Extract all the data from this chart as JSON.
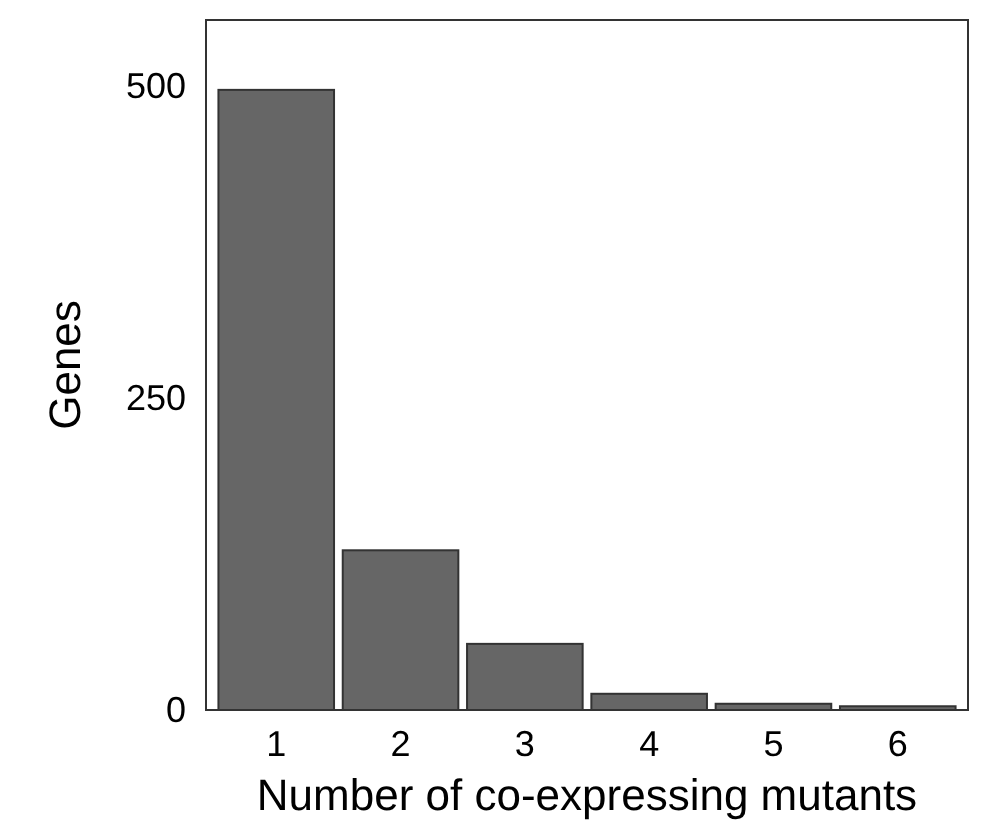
{
  "chart_data": {
    "type": "bar",
    "xlabel": "Number of co-expressing mutants",
    "ylabel": "Genes",
    "categories": [
      "1",
      "2",
      "3",
      "4",
      "5",
      "6"
    ],
    "values": [
      497,
      128,
      53,
      13,
      5,
      3
    ],
    "color": "#666666",
    "ylim": [
      0,
      553
    ],
    "yticks": [
      0,
      250,
      500
    ],
    "grid": false
  }
}
